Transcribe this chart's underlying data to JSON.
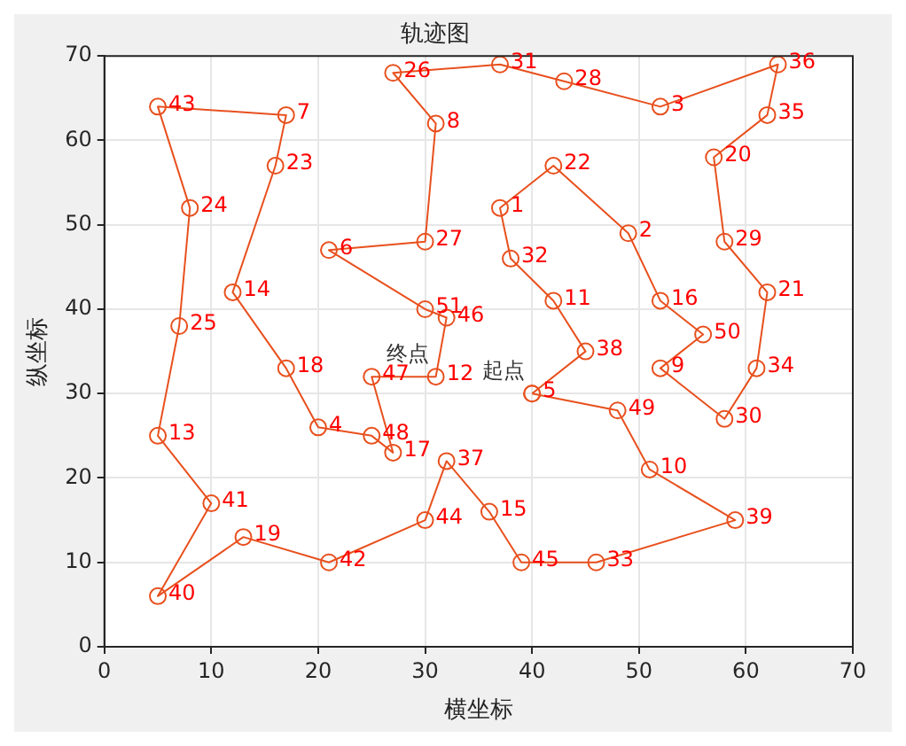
{
  "chart_data": {
    "type": "scatter",
    "title": "轨迹图",
    "xlabel": "横坐标",
    "ylabel": "纵坐标",
    "xlim": [
      0,
      70
    ],
    "xticks": [
      0,
      10,
      20,
      30,
      40,
      50,
      60,
      70
    ],
    "ylim": [
      0,
      70
    ],
    "yticks": [
      0,
      10,
      20,
      30,
      40,
      50,
      60,
      70
    ],
    "grid": true,
    "marker": "circle",
    "line_style": "solid",
    "series": [
      {
        "color": "#e8501e",
        "x": [
          40,
          45,
          42,
          38,
          37,
          42,
          49,
          52,
          56,
          52,
          58,
          61,
          62,
          58,
          57,
          62,
          63,
          52,
          43,
          37,
          27,
          31,
          30,
          21,
          30,
          32,
          31,
          25,
          27,
          25,
          20,
          17,
          12,
          16,
          17,
          5,
          8,
          7,
          5,
          10,
          5,
          13,
          21,
          30,
          32,
          36,
          39,
          46,
          59,
          51,
          48,
          40
        ],
        "values": [
          30,
          35,
          41,
          46,
          52,
          57,
          49,
          41,
          37,
          33,
          27,
          33,
          42,
          48,
          58,
          63,
          69,
          64,
          67,
          69,
          68,
          62,
          48,
          47,
          40,
          39,
          32,
          32,
          23,
          25,
          26,
          33,
          42,
          57,
          63,
          64,
          52,
          38,
          25,
          17,
          6,
          13,
          10,
          15,
          22,
          16,
          10,
          10,
          15,
          21,
          28,
          30
        ]
      }
    ],
    "annotations": [
      {
        "text": "起点",
        "x": 40,
        "y": 30
      },
      {
        "text": "终点",
        "x": 31,
        "y": 32
      },
      {
        "text": "5",
        "x": 40,
        "y": 30
      },
      {
        "text": "38",
        "x": 45,
        "y": 35
      },
      {
        "text": "11",
        "x": 42,
        "y": 41
      },
      {
        "text": "32",
        "x": 38,
        "y": 46
      },
      {
        "text": "1",
        "x": 37,
        "y": 52
      },
      {
        "text": "22",
        "x": 42,
        "y": 57
      },
      {
        "text": "2",
        "x": 49,
        "y": 49
      },
      {
        "text": "16",
        "x": 52,
        "y": 41
      },
      {
        "text": "50",
        "x": 56,
        "y": 37
      },
      {
        "text": "9",
        "x": 52,
        "y": 33
      },
      {
        "text": "30",
        "x": 58,
        "y": 27
      },
      {
        "text": "34",
        "x": 61,
        "y": 33
      },
      {
        "text": "21",
        "x": 62,
        "y": 42
      },
      {
        "text": "29",
        "x": 58,
        "y": 48
      },
      {
        "text": "20",
        "x": 57,
        "y": 58
      },
      {
        "text": "35",
        "x": 62,
        "y": 63
      },
      {
        "text": "36",
        "x": 63,
        "y": 69
      },
      {
        "text": "3",
        "x": 52,
        "y": 64
      },
      {
        "text": "28",
        "x": 43,
        "y": 67
      },
      {
        "text": "31",
        "x": 37,
        "y": 69
      },
      {
        "text": "26",
        "x": 27,
        "y": 68
      },
      {
        "text": "8",
        "x": 31,
        "y": 62
      },
      {
        "text": "27",
        "x": 30,
        "y": 48
      },
      {
        "text": "6",
        "x": 21,
        "y": 47
      },
      {
        "text": "51",
        "x": 30,
        "y": 40
      },
      {
        "text": "46",
        "x": 32,
        "y": 39
      },
      {
        "text": "12",
        "x": 31,
        "y": 32
      },
      {
        "text": "47",
        "x": 25,
        "y": 32
      },
      {
        "text": "17",
        "x": 27,
        "y": 23
      },
      {
        "text": "48",
        "x": 25,
        "y": 25
      },
      {
        "text": "4",
        "x": 20,
        "y": 26
      },
      {
        "text": "18",
        "x": 17,
        "y": 33
      },
      {
        "text": "14",
        "x": 12,
        "y": 42
      },
      {
        "text": "23",
        "x": 16,
        "y": 57
      },
      {
        "text": "7",
        "x": 17,
        "y": 63
      },
      {
        "text": "43",
        "x": 5,
        "y": 64
      },
      {
        "text": "24",
        "x": 8,
        "y": 52
      },
      {
        "text": "25",
        "x": 7,
        "y": 38
      },
      {
        "text": "13",
        "x": 5,
        "y": 25
      },
      {
        "text": "41",
        "x": 10,
        "y": 17
      },
      {
        "text": "40",
        "x": 5,
        "y": 6
      },
      {
        "text": "19",
        "x": 13,
        "y": 13
      },
      {
        "text": "42",
        "x": 21,
        "y": 10
      },
      {
        "text": "44",
        "x": 30,
        "y": 15
      },
      {
        "text": "37",
        "x": 32,
        "y": 22
      },
      {
        "text": "15",
        "x": 36,
        "y": 16
      },
      {
        "text": "45",
        "x": 39,
        "y": 10
      },
      {
        "text": "33",
        "x": 46,
        "y": 10
      },
      {
        "text": "39",
        "x": 59,
        "y": 15
      },
      {
        "text": "10",
        "x": 51,
        "y": 21
      },
      {
        "text": "49",
        "x": 48,
        "y": 28
      }
    ]
  }
}
